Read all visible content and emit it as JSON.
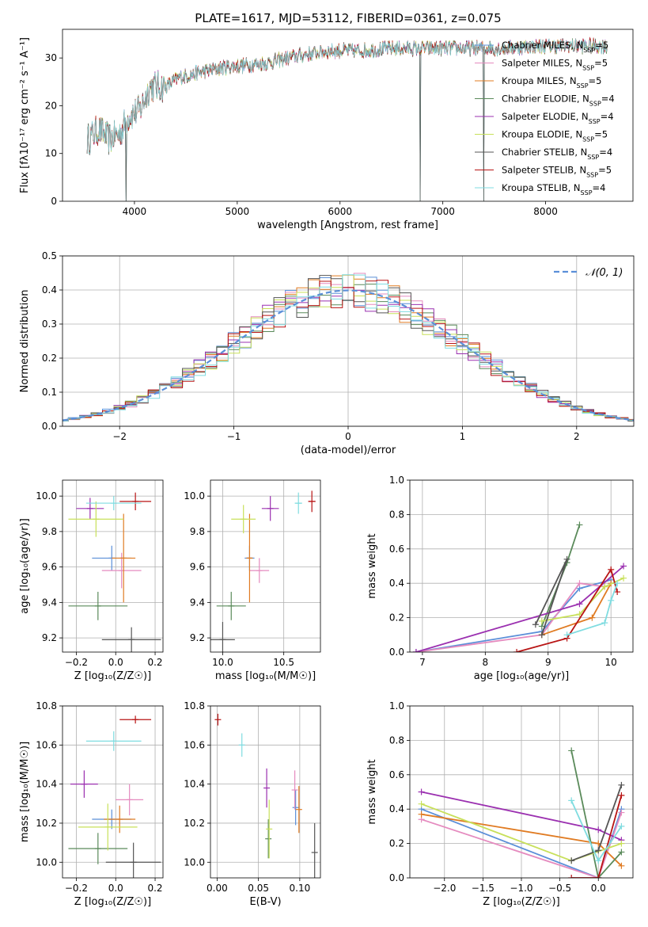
{
  "figure": {
    "title": "PLATE=1617, MJD=53112, FIBERID=0361, z=0.075"
  },
  "colors": {
    "blue": "#5b8fd8",
    "pink": "#e58bbf",
    "orange": "#e07b22",
    "green": "#5a8a5a",
    "purple": "#9b30b0",
    "yellow": "#c8e05a",
    "dark": "#555555",
    "red": "#b81414",
    "cyan": "#7fdce0"
  },
  "chart_data": [
    {
      "id": "spectrum",
      "type": "line",
      "xlabel": "wavelength [Angstrom, rest frame]",
      "ylabel": "Flux [fλ10⁻¹⁷ erg cm⁻² s⁻¹ A⁻¹]",
      "xlim": [
        3300,
        8850
      ],
      "ylim": [
        0,
        36
      ],
      "xticks": [
        4000,
        5000,
        6000,
        7000,
        8000
      ],
      "yticks": [
        0,
        10,
        20,
        30
      ],
      "legend_position": "right",
      "continuum": [
        [
          3550,
          13
        ],
        [
          3650,
          15
        ],
        [
          3750,
          13
        ],
        [
          3850,
          14
        ],
        [
          3950,
          18
        ],
        [
          4050,
          19
        ],
        [
          4150,
          24
        ],
        [
          4300,
          24
        ],
        [
          4450,
          26
        ],
        [
          4650,
          27
        ],
        [
          4850,
          28
        ],
        [
          5100,
          28.5
        ],
        [
          5300,
          29
        ],
        [
          5600,
          30.5
        ],
        [
          5900,
          31.5
        ],
        [
          6200,
          31.5
        ],
        [
          6500,
          32
        ],
        [
          6800,
          32
        ],
        [
          7100,
          32
        ],
        [
          7500,
          32
        ],
        [
          8000,
          32.5
        ],
        [
          8600,
          32.5
        ]
      ],
      "dropouts": [
        {
          "x": 3920,
          "y": 0
        },
        {
          "x": 6780,
          "y": 0
        },
        {
          "x": 7400,
          "y": 0
        }
      ],
      "series": [
        {
          "name": "Chabrier MILES, N_SSP=5",
          "color": "blue"
        },
        {
          "name": "Salpeter MILES, N_SSP=5",
          "color": "pink"
        },
        {
          "name": "Kroupa MILES, N_SSP=5",
          "color": "orange"
        },
        {
          "name": "Chabrier ELODIE, N_SSP=4",
          "color": "green"
        },
        {
          "name": "Salpeter ELODIE, N_SSP=4",
          "color": "purple"
        },
        {
          "name": "Kroupa ELODIE, N_SSP=5",
          "color": "yellow"
        },
        {
          "name": "Chabrier STELIB, N_SSP=4",
          "color": "dark"
        },
        {
          "name": "Salpeter STELIB, N_SSP=5",
          "color": "red"
        },
        {
          "name": "Kroupa STELIB, N_SSP=4",
          "color": "cyan"
        }
      ]
    },
    {
      "id": "residuals",
      "type": "line",
      "xlabel": "(data-model)/error",
      "ylabel": "Normed distribution",
      "xlim": [
        -2.5,
        2.5
      ],
      "ylim": [
        0,
        0.5
      ],
      "xticks": [
        -2,
        -1,
        0,
        1,
        2
      ],
      "yticks": [
        0.0,
        0.1,
        0.2,
        0.3,
        0.4,
        0.5
      ],
      "grid": true,
      "legend_position": "top-right",
      "gaussian_label": "𝒩(0, 1)",
      "gaussian_color": "#5b8fd8"
    },
    {
      "id": "age_vs_Z",
      "type": "scatter",
      "xlabel": "Z [log₁₀(Z/Z☉)]",
      "ylabel": "age  [log₁₀(age/yr)]",
      "xlim": [
        -0.27,
        0.24
      ],
      "ylim": [
        9.12,
        10.09
      ],
      "xticks": [
        -0.2,
        0.0,
        0.2
      ],
      "yticks": [
        9.2,
        9.4,
        9.6,
        9.8,
        10.0
      ],
      "grid": true,
      "points": [
        {
          "color": "blue",
          "x": -0.02,
          "xerr": 0.1,
          "y": 9.65,
          "yerr": 0.07
        },
        {
          "color": "pink",
          "x": 0.03,
          "xerr": 0.1,
          "y": 9.58,
          "yerr": 0.1
        },
        {
          "color": "orange",
          "x": 0.04,
          "xerr": 0.06,
          "y": 9.65,
          "yerr": 0.25
        },
        {
          "color": "green",
          "x": -0.09,
          "xerr": 0.15,
          "y": 9.38,
          "yerr": 0.08
        },
        {
          "color": "purple",
          "x": -0.13,
          "xerr": 0.07,
          "y": 9.93,
          "yerr": 0.06
        },
        {
          "color": "yellow",
          "x": -0.1,
          "xerr": 0.14,
          "y": 9.87,
          "yerr": 0.1
        },
        {
          "color": "dark",
          "x": 0.08,
          "xerr": 0.15,
          "y": 9.19,
          "yerr": 0.07
        },
        {
          "color": "red",
          "x": 0.1,
          "xerr": 0.08,
          "y": 9.97,
          "yerr": 0.05
        },
        {
          "color": "cyan",
          "x": -0.01,
          "xerr": 0.14,
          "y": 9.96,
          "yerr": 0.04
        }
      ]
    },
    {
      "id": "age_vs_mass",
      "type": "scatter",
      "xlabel": "mass [log₁₀(M/M☉)]",
      "ylabel": "",
      "xlim": [
        9.9,
        10.8
      ],
      "ylim": [
        9.12,
        10.09
      ],
      "xticks": [
        10.0,
        10.5
      ],
      "yticks": [
        9.2,
        9.4,
        9.6,
        9.8,
        10.0
      ],
      "grid": true,
      "points": [
        {
          "color": "blue",
          "x": 10.22,
          "xerr": 0.04,
          "y": 9.65,
          "yerr": 0.07
        },
        {
          "color": "pink",
          "x": 10.3,
          "xerr": 0.08,
          "y": 9.58,
          "yerr": 0.07
        },
        {
          "color": "orange",
          "x": 10.22,
          "xerr": 0.02,
          "y": 9.65,
          "yerr": 0.25
        },
        {
          "color": "green",
          "x": 10.07,
          "xerr": 0.12,
          "y": 9.38,
          "yerr": 0.08
        },
        {
          "color": "purple",
          "x": 10.39,
          "xerr": 0.07,
          "y": 9.93,
          "yerr": 0.07
        },
        {
          "color": "yellow",
          "x": 10.17,
          "xerr": 0.1,
          "y": 9.87,
          "yerr": 0.08
        },
        {
          "color": "dark",
          "x": 10.0,
          "xerr": 0.1,
          "y": 9.19,
          "yerr": 0.1
        },
        {
          "color": "red",
          "x": 10.73,
          "xerr": 0.03,
          "y": 9.97,
          "yerr": 0.06
        },
        {
          "color": "cyan",
          "x": 10.62,
          "xerr": 0.03,
          "y": 9.96,
          "yerr": 0.06
        }
      ]
    },
    {
      "id": "weight_vs_age",
      "type": "line",
      "xlabel": "age  [log₁₀(age/yr)]",
      "ylabel": "mass weight",
      "xlim": [
        6.8,
        10.35
      ],
      "ylim": [
        0.0,
        1.0
      ],
      "xticks": [
        7,
        8,
        9,
        10
      ],
      "yticks": [
        0.0,
        0.2,
        0.4,
        0.6,
        0.8,
        1.0
      ],
      "grid": true,
      "series": [
        {
          "color": "blue",
          "points": [
            [
              6.9,
              0.0
            ],
            [
              8.9,
              0.12
            ],
            [
              9.5,
              0.37
            ],
            [
              10.0,
              0.42
            ]
          ]
        },
        {
          "color": "pink",
          "points": [
            [
              6.9,
              0.0
            ],
            [
              8.9,
              0.1
            ],
            [
              9.5,
              0.4
            ],
            [
              9.9,
              0.38
            ]
          ]
        },
        {
          "color": "orange",
          "points": [
            [
              8.9,
              0.1
            ],
            [
              9.7,
              0.2
            ],
            [
              10.0,
              0.4
            ]
          ]
        },
        {
          "color": "green",
          "points": [
            [
              8.9,
              0.15
            ],
            [
              9.3,
              0.52
            ],
            [
              9.5,
              0.74
            ]
          ]
        },
        {
          "color": "purple",
          "points": [
            [
              6.9,
              0.0
            ],
            [
              9.5,
              0.28
            ],
            [
              10.2,
              0.5
            ]
          ]
        },
        {
          "color": "yellow",
          "points": [
            [
              8.9,
              0.18
            ],
            [
              9.5,
              0.22
            ],
            [
              9.9,
              0.38
            ],
            [
              10.2,
              0.43
            ]
          ]
        },
        {
          "color": "dark",
          "points": [
            [
              8.8,
              0.16
            ],
            [
              9.3,
              0.54
            ],
            [
              8.9,
              0.1
            ]
          ]
        },
        {
          "color": "red",
          "points": [
            [
              8.5,
              0.0
            ],
            [
              9.3,
              0.08
            ],
            [
              10.0,
              0.48
            ],
            [
              10.1,
              0.35
            ]
          ]
        },
        {
          "color": "cyan",
          "points": [
            [
              9.3,
              0.1
            ],
            [
              9.9,
              0.17
            ],
            [
              10.0,
              0.3
            ],
            [
              10.1,
              0.4
            ]
          ]
        }
      ]
    },
    {
      "id": "mass_vs_Z",
      "type": "scatter",
      "xlabel": "Z [log₁₀(Z/Z☉)]",
      "ylabel": "mass [log₁₀(M/M☉)]",
      "xlim": [
        -0.27,
        0.24
      ],
      "ylim": [
        9.92,
        10.8
      ],
      "xticks": [
        -0.2,
        0.0,
        0.2
      ],
      "yticks": [
        10.0,
        10.2,
        10.4,
        10.6,
        10.8
      ],
      "grid": true,
      "points": [
        {
          "color": "blue",
          "x": -0.02,
          "xerr": 0.1,
          "y": 10.22,
          "yerr": 0.05
        },
        {
          "color": "pink",
          "x": 0.07,
          "xerr": 0.07,
          "y": 10.32,
          "yerr": 0.08
        },
        {
          "color": "orange",
          "x": 0.02,
          "xerr": 0.08,
          "y": 10.22,
          "yerr": 0.07
        },
        {
          "color": "green",
          "x": -0.09,
          "xerr": 0.15,
          "y": 10.07,
          "yerr": 0.08
        },
        {
          "color": "purple",
          "x": -0.16,
          "xerr": 0.07,
          "y": 10.4,
          "yerr": 0.07
        },
        {
          "color": "yellow",
          "x": -0.04,
          "xerr": 0.15,
          "y": 10.18,
          "yerr": 0.12
        },
        {
          "color": "dark",
          "x": 0.09,
          "xerr": 0.14,
          "y": 10.0,
          "yerr": 0.1
        },
        {
          "color": "red",
          "x": 0.1,
          "xerr": 0.08,
          "y": 10.73,
          "yerr": 0.02
        },
        {
          "color": "cyan",
          "x": -0.01,
          "xerr": 0.14,
          "y": 10.62,
          "yerr": 0.05
        }
      ]
    },
    {
      "id": "mass_vs_EBV",
      "type": "scatter",
      "xlabel": "E(B-V)",
      "ylabel": "",
      "xlim": [
        -0.008,
        0.125
      ],
      "ylim": [
        9.92,
        10.8
      ],
      "xticks": [
        0.0,
        0.05,
        0.1
      ],
      "yticks": [
        10.0,
        10.2,
        10.4,
        10.6,
        10.8
      ],
      "grid": true,
      "points": [
        {
          "color": "blue",
          "x": 0.095,
          "xerr": 0,
          "y": 10.28,
          "yerr": 0.09
        },
        {
          "color": "pink",
          "x": 0.094,
          "xerr": 0,
          "y": 10.37,
          "yerr": 0.1
        },
        {
          "color": "orange",
          "x": 0.099,
          "xerr": 0,
          "y": 10.27,
          "yerr": 0.12
        },
        {
          "color": "green",
          "x": 0.062,
          "xerr": 0,
          "y": 10.12,
          "yerr": 0.1
        },
        {
          "color": "purple",
          "x": 0.06,
          "xerr": 0,
          "y": 10.38,
          "yerr": 0.1
        },
        {
          "color": "yellow",
          "x": 0.063,
          "xerr": 0,
          "y": 10.17,
          "yerr": 0.15
        },
        {
          "color": "dark",
          "x": 0.118,
          "xerr": 0,
          "y": 10.05,
          "yerr": 0.15
        },
        {
          "color": "red",
          "x": 0.001,
          "xerr": 0,
          "y": 10.73,
          "yerr": 0.03
        },
        {
          "color": "cyan",
          "x": 0.03,
          "xerr": 0,
          "y": 10.6,
          "yerr": 0.06
        }
      ]
    },
    {
      "id": "weight_vs_Z",
      "type": "line",
      "xlabel": "Z [log₁₀(Z/Z☉)]",
      "ylabel": "mass weight",
      "xlim": [
        -2.45,
        0.45
      ],
      "ylim": [
        0.0,
        1.0
      ],
      "xticks": [
        -2.0,
        -1.5,
        -1.0,
        -0.5,
        0.0
      ],
      "yticks": [
        0.0,
        0.2,
        0.4,
        0.6,
        0.8,
        1.0
      ],
      "grid": true,
      "series": [
        {
          "color": "blue",
          "points": [
            [
              -2.3,
              0.4
            ],
            [
              0.0,
              0.0
            ],
            [
              0.3,
              0.4
            ]
          ]
        },
        {
          "color": "pink",
          "points": [
            [
              -2.3,
              0.34
            ],
            [
              0.0,
              0.0
            ],
            [
              0.3,
              0.38
            ]
          ]
        },
        {
          "color": "orange",
          "points": [
            [
              -2.3,
              0.37
            ],
            [
              0.0,
              0.2
            ],
            [
              0.3,
              0.07
            ]
          ]
        },
        {
          "color": "green",
          "points": [
            [
              -0.35,
              0.74
            ],
            [
              0.0,
              0.0
            ],
            [
              0.3,
              0.15
            ]
          ]
        },
        {
          "color": "purple",
          "points": [
            [
              -2.3,
              0.5
            ],
            [
              0.0,
              0.28
            ],
            [
              0.3,
              0.22
            ]
          ]
        },
        {
          "color": "yellow",
          "points": [
            [
              -2.3,
              0.43
            ],
            [
              -0.35,
              0.1
            ],
            [
              0.3,
              0.2
            ]
          ]
        },
        {
          "color": "dark",
          "points": [
            [
              -0.35,
              0.1
            ],
            [
              0.0,
              0.16
            ],
            [
              0.3,
              0.54
            ]
          ]
        },
        {
          "color": "red",
          "points": [
            [
              -0.35,
              0.0
            ],
            [
              0.0,
              0.0
            ],
            [
              0.3,
              0.48
            ]
          ]
        },
        {
          "color": "cyan",
          "points": [
            [
              -0.35,
              0.45
            ],
            [
              0.0,
              0.1
            ],
            [
              0.3,
              0.3
            ]
          ]
        }
      ]
    }
  ]
}
